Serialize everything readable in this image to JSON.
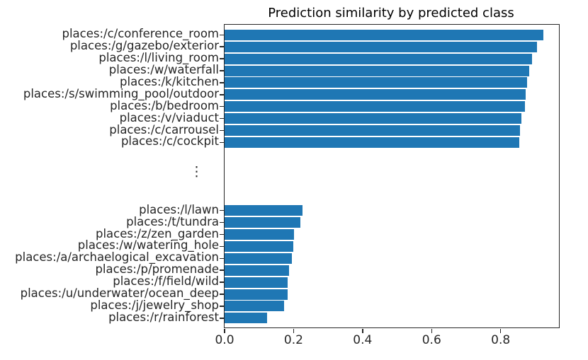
{
  "chart_data": {
    "type": "bar",
    "orientation": "horizontal",
    "title": "Prediction similarity by predicted class",
    "xlabel": "",
    "ylabel": "",
    "xlim": [
      0,
      0.969
    ],
    "xticks": [
      0.0,
      0.2,
      0.4,
      0.6,
      0.8
    ],
    "xtick_labels": [
      "0.0",
      "0.2",
      "0.4",
      "0.6",
      "0.8"
    ],
    "grid": false,
    "legend": false,
    "bar_color": "#1f77b4",
    "gap_marker": "⋮",
    "groups": [
      {
        "name": "top-similarity-group",
        "categories": [
          "places:/c/conference_room",
          "places:/g/gazebo/exterior",
          "places:/l/living_room",
          "places:/w/waterfall",
          "places:/k/kitchen",
          "places:/s/swimming_pool/outdoor",
          "places:/b/bedroom",
          "places:/v/viaduct",
          "places:/c/carrousel",
          "places:/c/cockpit"
        ],
        "values": [
          0.923,
          0.906,
          0.892,
          0.883,
          0.877,
          0.873,
          0.87,
          0.861,
          0.857,
          0.855
        ]
      },
      {
        "name": "bottom-similarity-group",
        "categories": [
          "places:/l/lawn",
          "places:/t/tundra",
          "places:/z/zen_garden",
          "places:/w/watering_hole",
          "places:/a/archaelogical_excavation",
          "places:/p/promenade",
          "places:/f/field/wild",
          "places:/u/underwater/ocean_deep",
          "places:/j/jewelry_shop",
          "places:/r/rainforest"
        ],
        "values": [
          0.225,
          0.219,
          0.201,
          0.199,
          0.196,
          0.186,
          0.183,
          0.182,
          0.173,
          0.123
        ]
      }
    ]
  }
}
